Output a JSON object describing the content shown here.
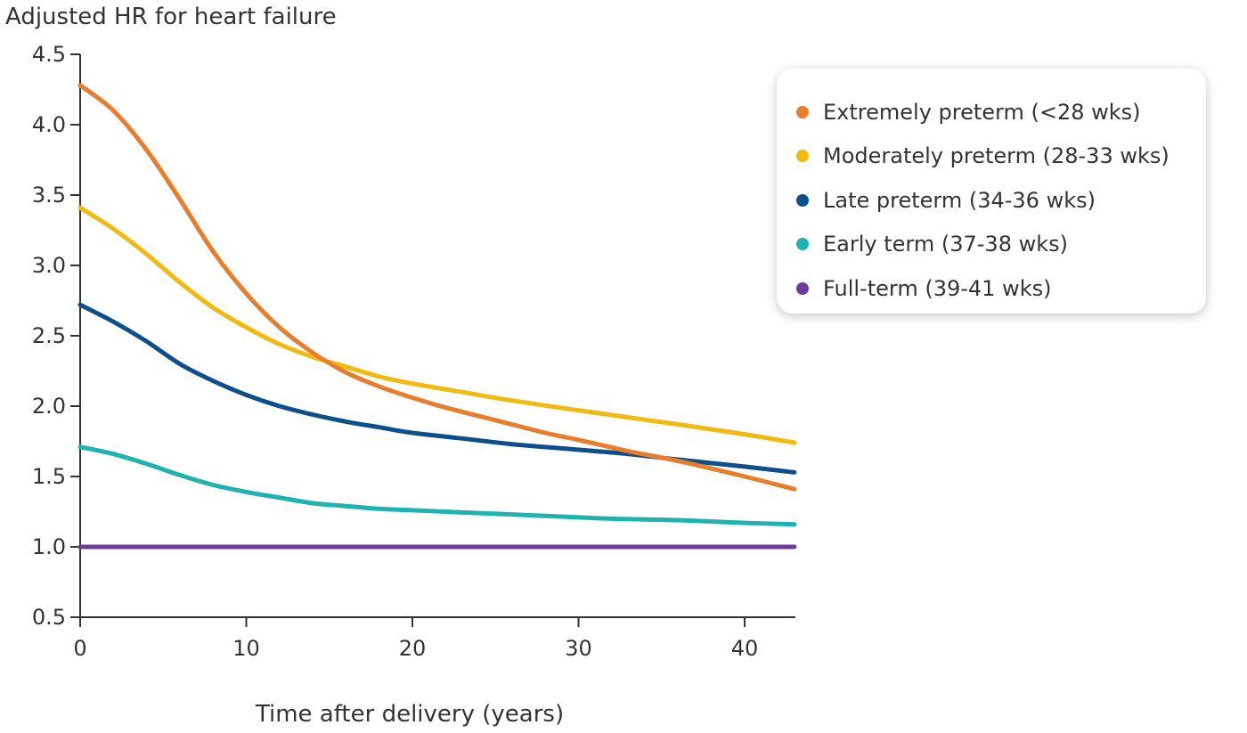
{
  "chart_data": {
    "type": "line",
    "title": "",
    "ylabel": "Adjusted HR for heart failure",
    "xlabel": "Time after delivery (years)",
    "xlim": [
      0,
      43
    ],
    "ylim": [
      0.5,
      4.5
    ],
    "xticks": [
      0,
      10,
      20,
      30,
      40
    ],
    "yticks": [
      0.5,
      1.0,
      1.5,
      2.0,
      2.5,
      3.0,
      3.5,
      4.0,
      4.5
    ],
    "ytick_labels": [
      "0.5",
      "1.0",
      "1.5",
      "2.0",
      "2.5",
      "3.0",
      "3.5",
      "4.0",
      "4.5"
    ],
    "grid": false,
    "legend_position": "top-right",
    "series": [
      {
        "name": "Extremely preterm (<28 wks)",
        "color": "#e87d2c",
        "x": [
          0,
          2,
          4,
          6,
          8,
          10,
          12,
          14,
          16,
          18,
          20,
          22,
          25,
          28,
          30,
          33,
          36,
          40,
          43
        ],
        "y": [
          4.28,
          4.1,
          3.82,
          3.47,
          3.1,
          2.8,
          2.56,
          2.38,
          2.24,
          2.14,
          2.06,
          1.99,
          1.9,
          1.81,
          1.76,
          1.68,
          1.61,
          1.5,
          1.41
        ]
      },
      {
        "name": "Moderately preterm (28-33 wks)",
        "color": "#f2b90f",
        "x": [
          0,
          2,
          4,
          6,
          8,
          10,
          12,
          14,
          16,
          18,
          20,
          23,
          26,
          30,
          33,
          36,
          40,
          43
        ],
        "y": [
          3.41,
          3.26,
          3.08,
          2.88,
          2.7,
          2.56,
          2.44,
          2.35,
          2.28,
          2.21,
          2.16,
          2.1,
          2.04,
          1.97,
          1.92,
          1.87,
          1.8,
          1.74
        ]
      },
      {
        "name": "Late preterm (34-36 wks)",
        "color": "#0d4f8a",
        "x": [
          0,
          2,
          4,
          6,
          8,
          10,
          12,
          14,
          16,
          18,
          20,
          23,
          26,
          30,
          33,
          36,
          40,
          43
        ],
        "y": [
          2.72,
          2.6,
          2.46,
          2.3,
          2.18,
          2.08,
          2.0,
          1.94,
          1.89,
          1.85,
          1.81,
          1.77,
          1.73,
          1.69,
          1.66,
          1.62,
          1.57,
          1.53
        ]
      },
      {
        "name": "Early term (37-38 wks)",
        "color": "#1fb3b0",
        "x": [
          0,
          2,
          4,
          6,
          8,
          10,
          12,
          14,
          16,
          18,
          20,
          24,
          28,
          32,
          36,
          40,
          43
        ],
        "y": [
          1.71,
          1.66,
          1.59,
          1.51,
          1.44,
          1.39,
          1.35,
          1.31,
          1.29,
          1.27,
          1.26,
          1.24,
          1.22,
          1.2,
          1.19,
          1.17,
          1.16
        ]
      },
      {
        "name": "Full-term (39-41 wks)",
        "color": "#6a3d9a",
        "x": [
          0,
          43
        ],
        "y": [
          1.0,
          1.0
        ]
      }
    ]
  }
}
